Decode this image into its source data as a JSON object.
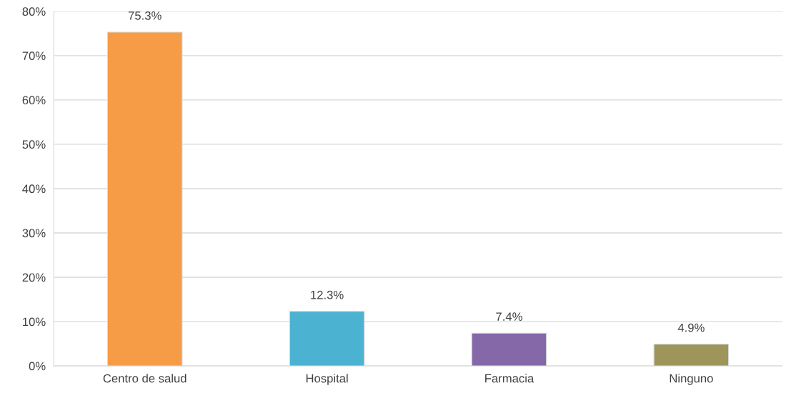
{
  "chart_data": {
    "type": "bar",
    "categories": [
      "Centro de salud",
      "Hospital",
      "Farmacia",
      "Ninguno"
    ],
    "values": [
      75.3,
      12.3,
      7.4,
      4.9
    ],
    "colors": [
      "#f79c46",
      "#4bb3d1",
      "#8468a8",
      "#9d955a"
    ],
    "value_labels": [
      "75.3%",
      "12.3%",
      "7.4%",
      "4.9%"
    ],
    "ylim": [
      0,
      80
    ],
    "yticks": [
      {
        "value": 0,
        "label": "0%"
      },
      {
        "value": 10,
        "label": "10%"
      },
      {
        "value": 20,
        "label": "20%"
      },
      {
        "value": 30,
        "label": "30%"
      },
      {
        "value": 40,
        "label": "40%"
      },
      {
        "value": 50,
        "label": "50%"
      },
      {
        "value": 60,
        "label": "60%"
      },
      {
        "value": 70,
        "label": "70%"
      },
      {
        "value": 80,
        "label": "80%"
      }
    ],
    "grid": "y",
    "legend": false
  }
}
